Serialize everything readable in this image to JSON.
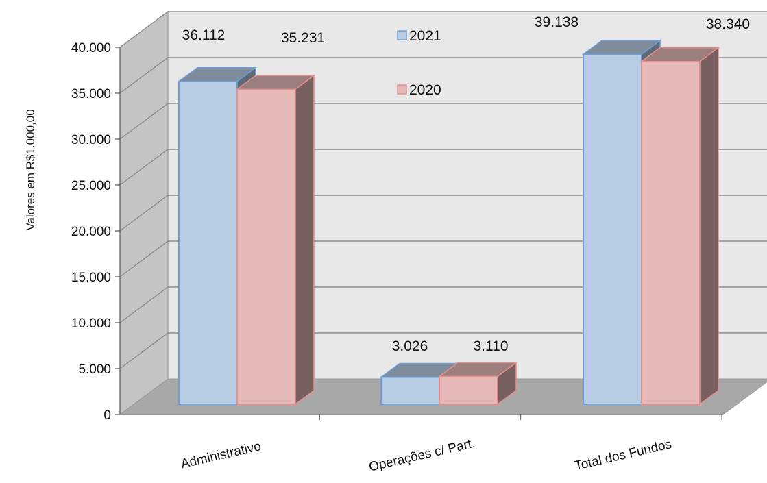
{
  "chart_data": {
    "type": "bar",
    "style": "3d-clustered-column",
    "categories": [
      "Administrativo",
      "Operações c/ Part.",
      "Total dos Fundos"
    ],
    "series": [
      {
        "name": "2021",
        "values": [
          36112,
          3026,
          39138
        ],
        "labels": [
          "36.112",
          "3.026",
          "39.138"
        ],
        "color": "#b8cce4",
        "edge_color": "#6f9fd8"
      },
      {
        "name": "2020",
        "values": [
          35231,
          3110,
          38340
        ],
        "labels": [
          "35.231",
          "3.110",
          "38.340"
        ],
        "color": "#e6b9b8",
        "edge_color": "#e58f8f"
      }
    ],
    "ylabel": "Valores em R$1.000,00",
    "ylim": [
      0,
      40000
    ],
    "yticks": [
      0,
      5000,
      10000,
      15000,
      20000,
      25000,
      30000,
      35000,
      40000
    ],
    "ytick_labels": [
      "0",
      "5.000",
      "10.000",
      "15.000",
      "20.000",
      "25.000",
      "30.000",
      "35.000",
      "40.000"
    ],
    "grid": true,
    "legend_position": "top-center",
    "colors": {
      "back_wall": "#e8e8e8",
      "side_wall": "#c4c4c4",
      "floor": "#a8a8a8",
      "grid": "#8c8c8c"
    }
  }
}
